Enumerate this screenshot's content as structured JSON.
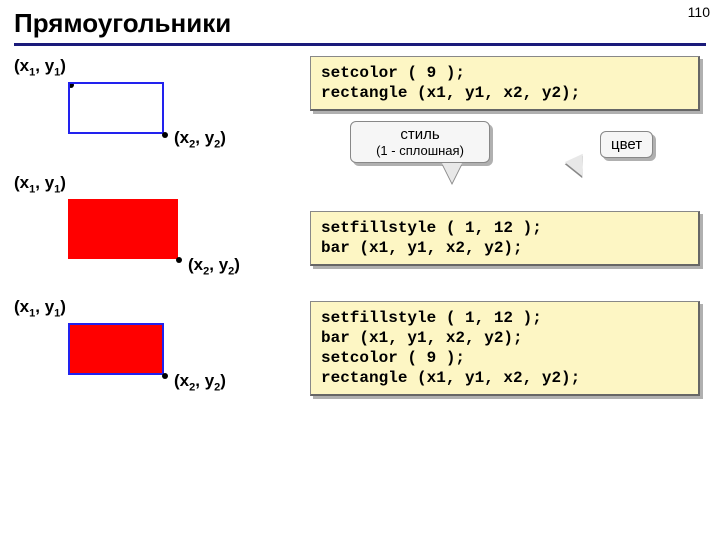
{
  "page_number": "110",
  "title": "Прямоугольники",
  "labels": {
    "tl": "(x<sub>1</sub>, y<sub>1</sub>)",
    "br": "(x<sub>2</sub>, y<sub>2</sub>)"
  },
  "code": {
    "box1": "setcolor ( 9 );\nrectangle (x1, y1, x2, y2);",
    "box2": "setfillstyle ( 1, 12 );\nbar (x1, y1, x2, y2);",
    "box3": "setfillstyle ( 1, 12 );\nbar (x1, y1, x2, y2);\nsetcolor ( 9 );\nrectangle (x1, y1, x2, y2);"
  },
  "callout": {
    "style_top": "стиль",
    "style_bottom": "(1 - сплошная)",
    "color": "цвет"
  },
  "colors": {
    "title_rule": "#1a1a7a",
    "codebox_bg": "#fdf6c4",
    "rect_border": "#2222ee",
    "rect_fill": "#ff0000",
    "callout_bg": "#f6f6f6",
    "shadow": "#b0b0b0"
  }
}
